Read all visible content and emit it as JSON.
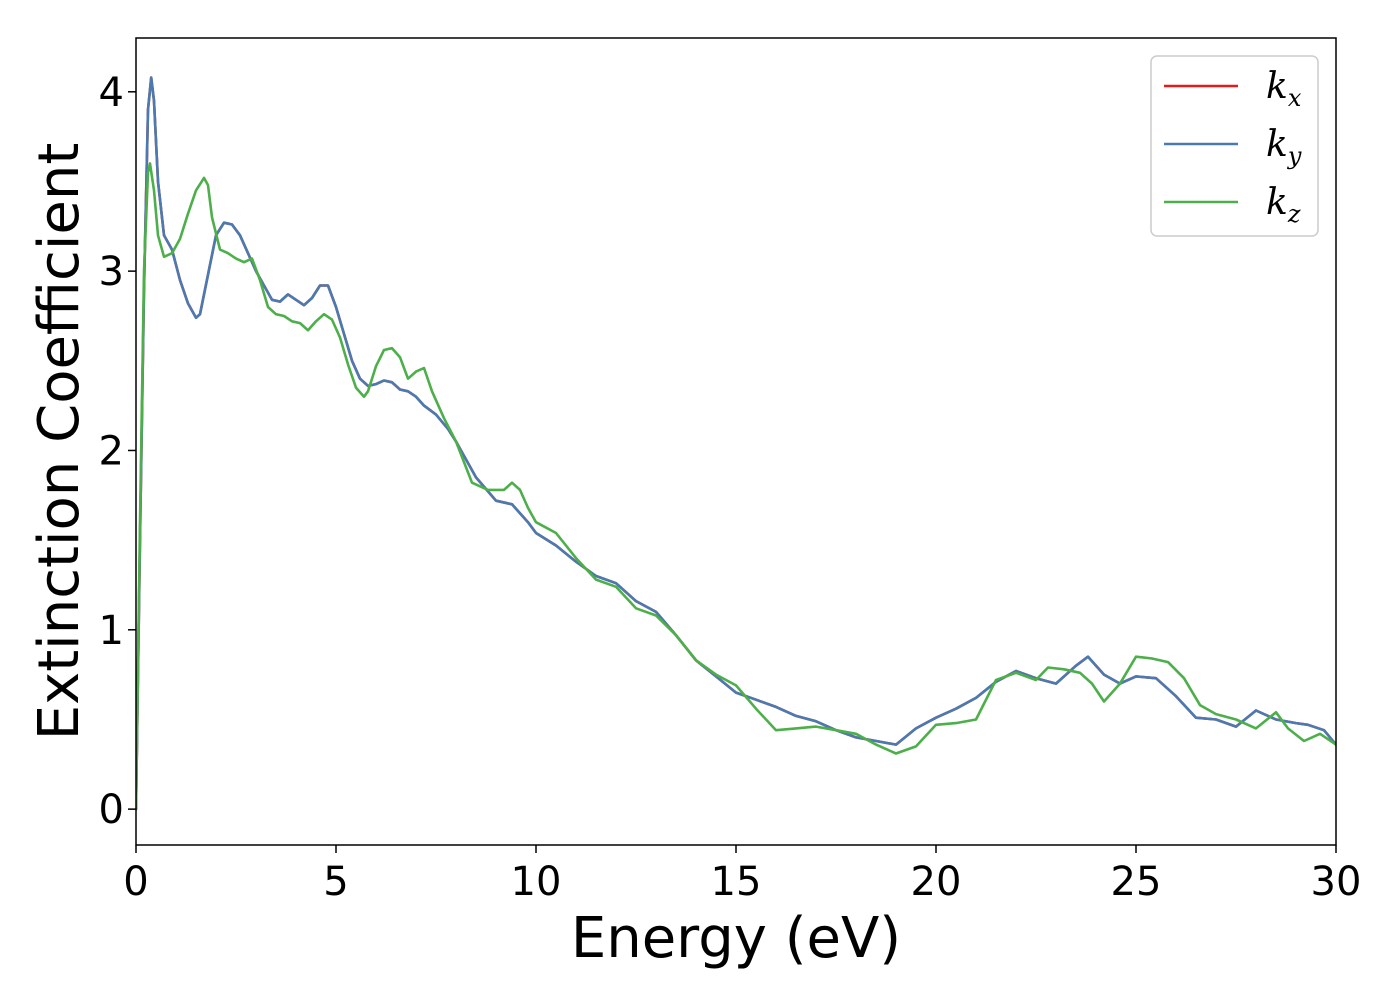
{
  "chart_data": {
    "type": "line",
    "title": "",
    "xlabel": "Energy (eV)",
    "ylabel": "Extinction Coefficient",
    "xlim": [
      0,
      30
    ],
    "ylim": [
      -0.2,
      4.3
    ],
    "xticks": [
      0,
      5,
      10,
      15,
      20,
      25,
      30
    ],
    "yticks": [
      0,
      1,
      2,
      3,
      4
    ],
    "grid": false,
    "legend_position": "top-right",
    "series": [
      {
        "name": "k",
        "subscript": "x",
        "color": "#e41a1c",
        "x": [
          0,
          0.1,
          0.2,
          0.3,
          0.38,
          0.45,
          0.55,
          0.7,
          0.9,
          1.1,
          1.3,
          1.5,
          1.6,
          1.8,
          2.0,
          2.2,
          2.4,
          2.6,
          2.8,
          3.0,
          3.2,
          3.4,
          3.6,
          3.8,
          4.0,
          4.2,
          4.4,
          4.6,
          4.8,
          5.0,
          5.2,
          5.4,
          5.6,
          5.8,
          6.0,
          6.2,
          6.4,
          6.6,
          6.8,
          7.0,
          7.2,
          7.5,
          7.8,
          8.0,
          8.5,
          9.0,
          9.4,
          9.8,
          10.0,
          10.5,
          11.0,
          11.5,
          12.0,
          12.5,
          13.0,
          13.5,
          14.0,
          14.5,
          15.0,
          15.5,
          16.0,
          16.5,
          17.0,
          17.5,
          18.0,
          18.5,
          19.0,
          19.5,
          20.0,
          20.5,
          21.0,
          21.5,
          22.0,
          22.5,
          23.0,
          23.5,
          23.8,
          24.2,
          24.6,
          25.0,
          25.5,
          26.0,
          26.5,
          27.0,
          27.5,
          28.0,
          28.5,
          29.0,
          29.3,
          29.7,
          30.0
        ],
        "y": [
          0.0,
          1.5,
          2.9,
          3.9,
          4.08,
          3.95,
          3.5,
          3.2,
          3.12,
          2.95,
          2.82,
          2.74,
          2.76,
          2.98,
          3.2,
          3.27,
          3.26,
          3.2,
          3.1,
          3.0,
          2.92,
          2.84,
          2.83,
          2.87,
          2.84,
          2.81,
          2.85,
          2.92,
          2.92,
          2.8,
          2.65,
          2.5,
          2.4,
          2.36,
          2.37,
          2.39,
          2.38,
          2.34,
          2.33,
          2.3,
          2.25,
          2.2,
          2.12,
          2.05,
          1.85,
          1.72,
          1.7,
          1.6,
          1.54,
          1.47,
          1.38,
          1.3,
          1.26,
          1.16,
          1.1,
          0.97,
          0.83,
          0.74,
          0.65,
          0.61,
          0.57,
          0.52,
          0.49,
          0.44,
          0.4,
          0.38,
          0.36,
          0.45,
          0.51,
          0.56,
          0.62,
          0.71,
          0.77,
          0.73,
          0.7,
          0.8,
          0.85,
          0.75,
          0.7,
          0.74,
          0.73,
          0.63,
          0.51,
          0.5,
          0.46,
          0.55,
          0.5,
          0.48,
          0.47,
          0.44,
          0.36
        ]
      },
      {
        "name": "k",
        "subscript": "y",
        "color": "#4a7bb0",
        "x": [
          0,
          0.1,
          0.2,
          0.3,
          0.38,
          0.45,
          0.55,
          0.7,
          0.9,
          1.1,
          1.3,
          1.5,
          1.6,
          1.8,
          2.0,
          2.2,
          2.4,
          2.6,
          2.8,
          3.0,
          3.2,
          3.4,
          3.6,
          3.8,
          4.0,
          4.2,
          4.4,
          4.6,
          4.8,
          5.0,
          5.2,
          5.4,
          5.6,
          5.8,
          6.0,
          6.2,
          6.4,
          6.6,
          6.8,
          7.0,
          7.2,
          7.5,
          7.8,
          8.0,
          8.5,
          9.0,
          9.4,
          9.8,
          10.0,
          10.5,
          11.0,
          11.5,
          12.0,
          12.5,
          13.0,
          13.5,
          14.0,
          14.5,
          15.0,
          15.5,
          16.0,
          16.5,
          17.0,
          17.5,
          18.0,
          18.5,
          19.0,
          19.5,
          20.0,
          20.5,
          21.0,
          21.5,
          22.0,
          22.5,
          23.0,
          23.5,
          23.8,
          24.2,
          24.6,
          25.0,
          25.5,
          26.0,
          26.5,
          27.0,
          27.5,
          28.0,
          28.5,
          29.0,
          29.3,
          29.7,
          30.0
        ],
        "y": [
          0.0,
          1.5,
          2.9,
          3.9,
          4.08,
          3.95,
          3.5,
          3.2,
          3.12,
          2.95,
          2.82,
          2.74,
          2.76,
          2.98,
          3.2,
          3.27,
          3.26,
          3.2,
          3.1,
          3.0,
          2.92,
          2.84,
          2.83,
          2.87,
          2.84,
          2.81,
          2.85,
          2.92,
          2.92,
          2.8,
          2.65,
          2.5,
          2.4,
          2.36,
          2.37,
          2.39,
          2.38,
          2.34,
          2.33,
          2.3,
          2.25,
          2.2,
          2.12,
          2.05,
          1.85,
          1.72,
          1.7,
          1.6,
          1.54,
          1.47,
          1.38,
          1.3,
          1.26,
          1.16,
          1.1,
          0.97,
          0.83,
          0.74,
          0.65,
          0.61,
          0.57,
          0.52,
          0.49,
          0.44,
          0.4,
          0.38,
          0.36,
          0.45,
          0.51,
          0.56,
          0.62,
          0.71,
          0.77,
          0.73,
          0.7,
          0.8,
          0.85,
          0.75,
          0.7,
          0.74,
          0.73,
          0.63,
          0.51,
          0.5,
          0.46,
          0.55,
          0.5,
          0.48,
          0.47,
          0.44,
          0.36
        ]
      },
      {
        "name": "k",
        "subscript": "z",
        "color": "#4daf4a",
        "x": [
          0,
          0.1,
          0.2,
          0.3,
          0.35,
          0.45,
          0.55,
          0.7,
          0.9,
          1.1,
          1.3,
          1.5,
          1.7,
          1.8,
          1.9,
          2.1,
          2.3,
          2.5,
          2.7,
          2.9,
          3.1,
          3.3,
          3.5,
          3.7,
          3.9,
          4.1,
          4.3,
          4.5,
          4.7,
          4.9,
          5.1,
          5.3,
          5.5,
          5.7,
          5.8,
          6.0,
          6.2,
          6.4,
          6.6,
          6.8,
          7.0,
          7.2,
          7.4,
          7.7,
          8.0,
          8.4,
          8.8,
          9.2,
          9.4,
          9.6,
          9.8,
          10.0,
          10.5,
          11.0,
          11.5,
          12.0,
          12.5,
          13.0,
          13.5,
          14.0,
          14.5,
          15.0,
          15.5,
          16.0,
          16.5,
          17.0,
          17.5,
          18.0,
          18.5,
          19.0,
          19.5,
          20.0,
          20.5,
          21.0,
          21.5,
          22.0,
          22.5,
          22.8,
          23.2,
          23.6,
          23.9,
          24.2,
          24.6,
          25.0,
          25.4,
          25.8,
          26.2,
          26.6,
          27.0,
          27.5,
          28.0,
          28.5,
          28.8,
          29.2,
          29.6,
          30.0
        ],
        "y": [
          0.0,
          1.6,
          3.0,
          3.55,
          3.6,
          3.45,
          3.2,
          3.08,
          3.1,
          3.18,
          3.32,
          3.45,
          3.52,
          3.48,
          3.3,
          3.12,
          3.1,
          3.07,
          3.05,
          3.07,
          2.95,
          2.8,
          2.76,
          2.75,
          2.72,
          2.71,
          2.67,
          2.72,
          2.76,
          2.73,
          2.63,
          2.48,
          2.35,
          2.3,
          2.33,
          2.47,
          2.56,
          2.57,
          2.52,
          2.4,
          2.44,
          2.46,
          2.33,
          2.18,
          2.05,
          1.82,
          1.78,
          1.78,
          1.82,
          1.78,
          1.68,
          1.6,
          1.54,
          1.4,
          1.28,
          1.24,
          1.12,
          1.08,
          0.97,
          0.83,
          0.75,
          0.69,
          0.56,
          0.44,
          0.45,
          0.46,
          0.44,
          0.42,
          0.36,
          0.31,
          0.35,
          0.47,
          0.48,
          0.5,
          0.72,
          0.76,
          0.72,
          0.79,
          0.78,
          0.76,
          0.7,
          0.6,
          0.7,
          0.85,
          0.84,
          0.82,
          0.73,
          0.58,
          0.53,
          0.5,
          0.45,
          0.54,
          0.45,
          0.38,
          0.42,
          0.36
        ]
      }
    ]
  }
}
